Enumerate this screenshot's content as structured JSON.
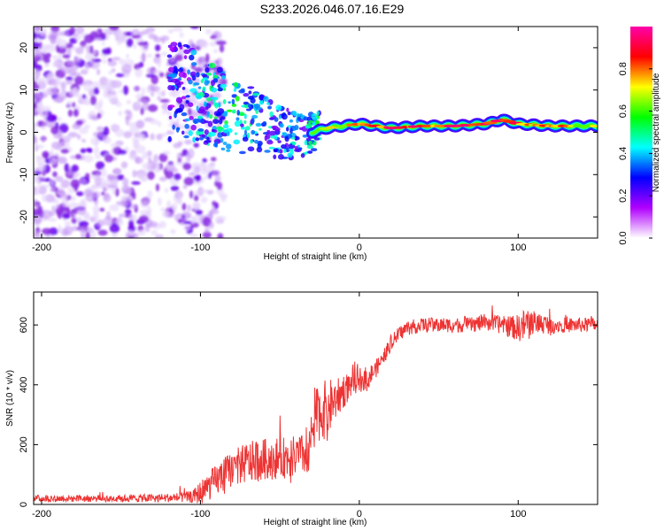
{
  "title": "S233.2026.046.07.16.E29",
  "chart_data": [
    {
      "type": "heatmap",
      "name": "spectrogram",
      "xlabel": "Height of straight line (km)",
      "ylabel": "Frequency (Hz)",
      "xlim": [
        -205,
        150
      ],
      "ylim": [
        -25,
        25
      ],
      "x_ticks": [
        "-200",
        "-100",
        "0",
        "100"
      ],
      "y_ticks": [
        "20",
        "10",
        "0",
        "-10",
        "-20"
      ],
      "x_tick_values": [
        -200,
        -100,
        0,
        100
      ],
      "y_tick_values": [
        20,
        10,
        0,
        -10,
        -20
      ],
      "colorbar": {
        "label": "Normalized spectral amplitude",
        "range": [
          0,
          1
        ],
        "ticks": [
          "0.0",
          "0.2",
          "0.4",
          "0.6",
          "0.8"
        ],
        "tick_values": [
          0.0,
          0.2,
          0.4,
          0.6,
          0.8
        ],
        "colors": [
          "#ffffff",
          "#b000ff",
          "#0000ff",
          "#00ffff",
          "#00ff00",
          "#ffff00",
          "#ff0000",
          "#ff00aa"
        ]
      },
      "signal_band": [
        {
          "x": -110,
          "freq": 10,
          "amp": 0.35
        },
        {
          "x": -100,
          "freq": 8,
          "amp": 0.45
        },
        {
          "x": -90,
          "freq": 6,
          "amp": 0.5
        },
        {
          "x": -80,
          "freq": 4,
          "amp": 0.55
        },
        {
          "x": -70,
          "freq": 3,
          "amp": 0.5
        },
        {
          "x": -60,
          "freq": 2,
          "amp": 0.45
        },
        {
          "x": -50,
          "freq": 0,
          "amp": 0.4
        },
        {
          "x": -40,
          "freq": -1,
          "amp": 0.45
        },
        {
          "x": -30,
          "freq": 0,
          "amp": 0.5
        },
        {
          "x": -20,
          "freq": 1,
          "amp": 0.6
        },
        {
          "x": -10,
          "freq": 1.5,
          "amp": 0.7
        },
        {
          "x": 0,
          "freq": 2,
          "amp": 0.8
        },
        {
          "x": 20,
          "freq": 1,
          "amp": 0.85
        },
        {
          "x": 40,
          "freq": 1.5,
          "amp": 0.8
        },
        {
          "x": 60,
          "freq": 1.5,
          "amp": 0.85
        },
        {
          "x": 80,
          "freq": 2,
          "amp": 0.9
        },
        {
          "x": 90,
          "freq": 3,
          "amp": 0.85
        },
        {
          "x": 100,
          "freq": 2,
          "amp": 0.8
        },
        {
          "x": 120,
          "freq": 1.5,
          "amp": 0.7
        },
        {
          "x": 140,
          "freq": 1.5,
          "amp": 0.7
        },
        {
          "x": 150,
          "freq": 1.5,
          "amp": 0.7
        }
      ]
    },
    {
      "type": "line",
      "name": "snr",
      "xlabel": "Height of straight line (km)",
      "ylabel": "SNR (10 * v/v)",
      "xlim": [
        -205,
        150
      ],
      "ylim": [
        0,
        710
      ],
      "x_ticks": [
        "-200",
        "-100",
        "0",
        "100"
      ],
      "y_ticks": [
        "0",
        "200",
        "400",
        "600"
      ],
      "x_tick_values": [
        -200,
        -100,
        0,
        100
      ],
      "y_tick_values": [
        0,
        200,
        400,
        600
      ],
      "color": "#ee3333",
      "series": [
        {
          "name": "SNR",
          "x": [
            -205,
            -180,
            -150,
            -120,
            -105,
            -100,
            -90,
            -80,
            -70,
            -60,
            -50,
            -40,
            -32,
            -28,
            -20,
            -15,
            -10,
            -5,
            0,
            5,
            10,
            15,
            20,
            25,
            30,
            40,
            50,
            60,
            70,
            80,
            90,
            100,
            105,
            110,
            120,
            130,
            140,
            150
          ],
          "y": [
            20,
            20,
            20,
            22,
            25,
            40,
            80,
            120,
            140,
            150,
            155,
            160,
            170,
            300,
            320,
            350,
            380,
            400,
            420,
            420,
            450,
            490,
            540,
            570,
            590,
            600,
            600,
            600,
            600,
            610,
            600,
            590,
            600,
            610,
            600,
            600,
            600,
            600
          ],
          "noise": [
            12,
            12,
            12,
            15,
            20,
            40,
            55,
            60,
            70,
            70,
            70,
            70,
            70,
            95,
            100,
            70,
            60,
            40,
            40,
            40,
            30,
            25,
            25,
            25,
            25,
            25,
            25,
            25,
            25,
            30,
            30,
            45,
            60,
            40,
            30,
            25,
            25,
            25
          ]
        }
      ]
    }
  ]
}
